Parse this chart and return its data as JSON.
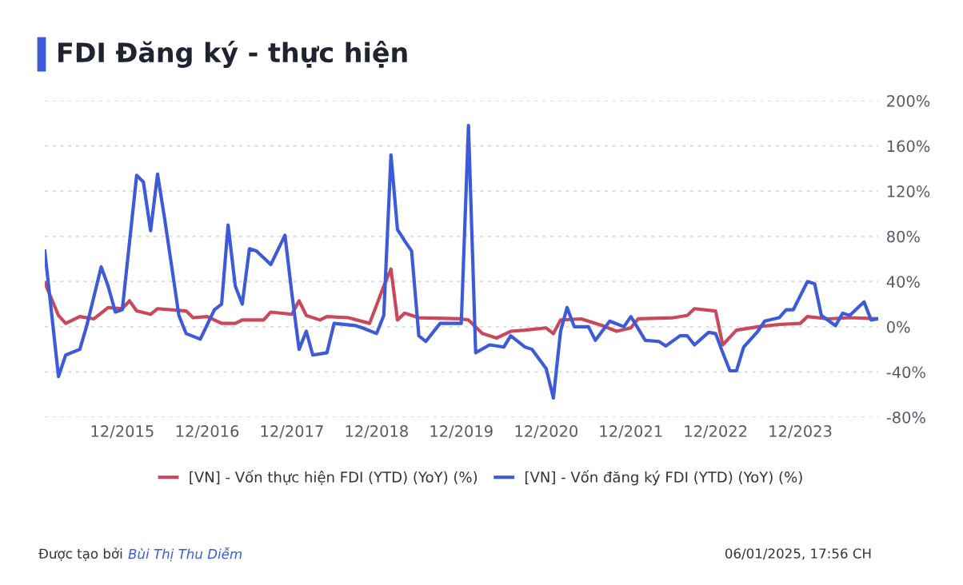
{
  "chart_data": {
    "type": "line",
    "title": "FDI Đăng ký - thực hiện",
    "series": [
      {
        "name": "[VN] - Vốn thực hiện FDI (YTD) (YoY) (%)",
        "color": "#c9485b",
        "x": [
          "2015-01",
          "2015-03",
          "2015-04",
          "2015-06",
          "2015-08",
          "2015-10",
          "2015-12",
          "2016-01",
          "2016-02",
          "2016-04",
          "2016-05",
          "2016-09",
          "2016-10",
          "2016-12",
          "2017-02",
          "2017-04",
          "2017-05",
          "2017-08",
          "2017-09",
          "2017-12",
          "2018-01",
          "2018-02",
          "2018-04",
          "2018-05",
          "2018-08",
          "2018-11",
          "2019-01",
          "2019-02",
          "2019-03",
          "2019-04",
          "2019-06",
          "2019-12",
          "2020-01",
          "2020-03",
          "2020-05",
          "2020-07",
          "2020-09",
          "2020-12",
          "2021-01",
          "2021-02",
          "2021-05",
          "2021-08",
          "2021-10",
          "2021-12",
          "2022-01",
          "2022-06",
          "2022-08",
          "2022-09",
          "2022-12",
          "2023-01",
          "2023-03",
          "2023-06",
          "2023-09",
          "2023-12",
          "2024-01",
          "2024-04",
          "2024-07",
          "2024-11"
        ],
        "values": [
          39,
          10,
          3,
          9,
          7,
          17,
          16,
          23,
          14,
          11,
          16,
          14,
          8,
          9,
          3,
          3,
          6,
          6,
          13,
          11,
          23,
          10,
          6,
          9,
          8,
          3,
          36,
          51,
          6,
          12,
          8,
          7,
          6,
          -6,
          -10,
          -4,
          -3,
          -1,
          -6,
          6,
          7,
          1,
          -4,
          -1,
          7,
          8,
          10,
          16,
          14,
          -16,
          -3,
          0,
          2,
          3,
          9,
          7,
          8,
          7
        ]
      },
      {
        "name": "[VN] - Vốn đăng ký FDI (YTD) (YoY) (%)",
        "color": "#3d5bd9",
        "x": [
          "2015-01",
          "2015-03",
          "2015-04",
          "2015-06",
          "2015-07",
          "2015-09",
          "2015-10",
          "2015-11",
          "2015-12",
          "2016-02",
          "2016-03",
          "2016-04",
          "2016-05",
          "2016-06",
          "2016-08",
          "2016-09",
          "2016-11",
          "2017-01",
          "2017-02",
          "2017-03",
          "2017-04",
          "2017-05",
          "2017-06",
          "2017-07",
          "2017-09",
          "2017-11",
          "2017-12",
          "2018-01",
          "2018-02",
          "2018-03",
          "2018-05",
          "2018-06",
          "2018-09",
          "2018-10",
          "2018-12",
          "2019-01",
          "2019-02",
          "2019-03",
          "2019-04",
          "2019-05",
          "2019-06",
          "2019-07",
          "2019-09",
          "2019-12",
          "2020-01",
          "2020-02",
          "2020-04",
          "2020-06",
          "2020-07",
          "2020-09",
          "2020-10",
          "2020-12",
          "2021-01",
          "2021-02",
          "2021-03",
          "2021-04",
          "2021-06",
          "2021-07",
          "2021-09",
          "2021-11",
          "2021-12",
          "2022-02",
          "2022-04",
          "2022-05",
          "2022-07",
          "2022-08",
          "2022-09",
          "2022-11",
          "2022-12",
          "2023-01",
          "2023-02",
          "2023-03",
          "2023-04",
          "2023-06",
          "2023-07",
          "2023-09",
          "2023-10",
          "2023-11",
          "2024-01",
          "2024-02",
          "2024-03",
          "2024-05",
          "2024-06",
          "2024-07",
          "2024-09",
          "2024-10",
          "2024-11"
        ],
        "values": [
          67,
          -44,
          -25,
          -20,
          1,
          53,
          36,
          13,
          15,
          134,
          128,
          85,
          135,
          95,
          10,
          -6,
          -11,
          15,
          20,
          90,
          36,
          20,
          69,
          67,
          55,
          81,
          29,
          -20,
          -4,
          -25,
          -23,
          3,
          1,
          -1,
          -6,
          10,
          152,
          86,
          76,
          67,
          -8,
          -13,
          3,
          3,
          178,
          -23,
          -16,
          -18,
          -8,
          -18,
          -20,
          -37,
          -63,
          -4,
          17,
          0,
          0,
          -12,
          5,
          0,
          9,
          -12,
          -13,
          -17,
          -8,
          -8,
          -16,
          -5,
          -6,
          -23,
          -39,
          -39,
          -18,
          -4,
          5,
          8,
          15,
          15,
          40,
          38,
          10,
          1,
          12,
          10,
          22,
          6,
          7
        ]
      }
    ],
    "xlim": [
      "2015-01",
      "2024-11"
    ],
    "xticks": [
      {
        "value": "2015-12",
        "label": "12/2015"
      },
      {
        "value": "2016-12",
        "label": "12/2016"
      },
      {
        "value": "2017-12",
        "label": "12/2017"
      },
      {
        "value": "2018-12",
        "label": "12/2018"
      },
      {
        "value": "2019-12",
        "label": "12/2019"
      },
      {
        "value": "2020-12",
        "label": "12/2020"
      },
      {
        "value": "2021-12",
        "label": "12/2021"
      },
      {
        "value": "2022-12",
        "label": "12/2022"
      },
      {
        "value": "2023-12",
        "label": "12/2023"
      }
    ],
    "ylim": [
      -80,
      200
    ],
    "yticks": [
      {
        "value": -80,
        "label": "-80%"
      },
      {
        "value": -40,
        "label": "-40%"
      },
      {
        "value": 0,
        "label": "0%"
      },
      {
        "value": 40,
        "label": "40%"
      },
      {
        "value": 80,
        "label": "80%"
      },
      {
        "value": 120,
        "label": "120%"
      },
      {
        "value": 160,
        "label": "160%"
      },
      {
        "value": 200,
        "label": "200%"
      }
    ],
    "grid": "y",
    "legend": "bottom",
    "marker": "none",
    "line_style": "solid",
    "annotations": [
      "Được tạo bởi",
      "Bùi Thị Thu Diễm",
      "06/01/2025, 17:56 CH"
    ]
  }
}
